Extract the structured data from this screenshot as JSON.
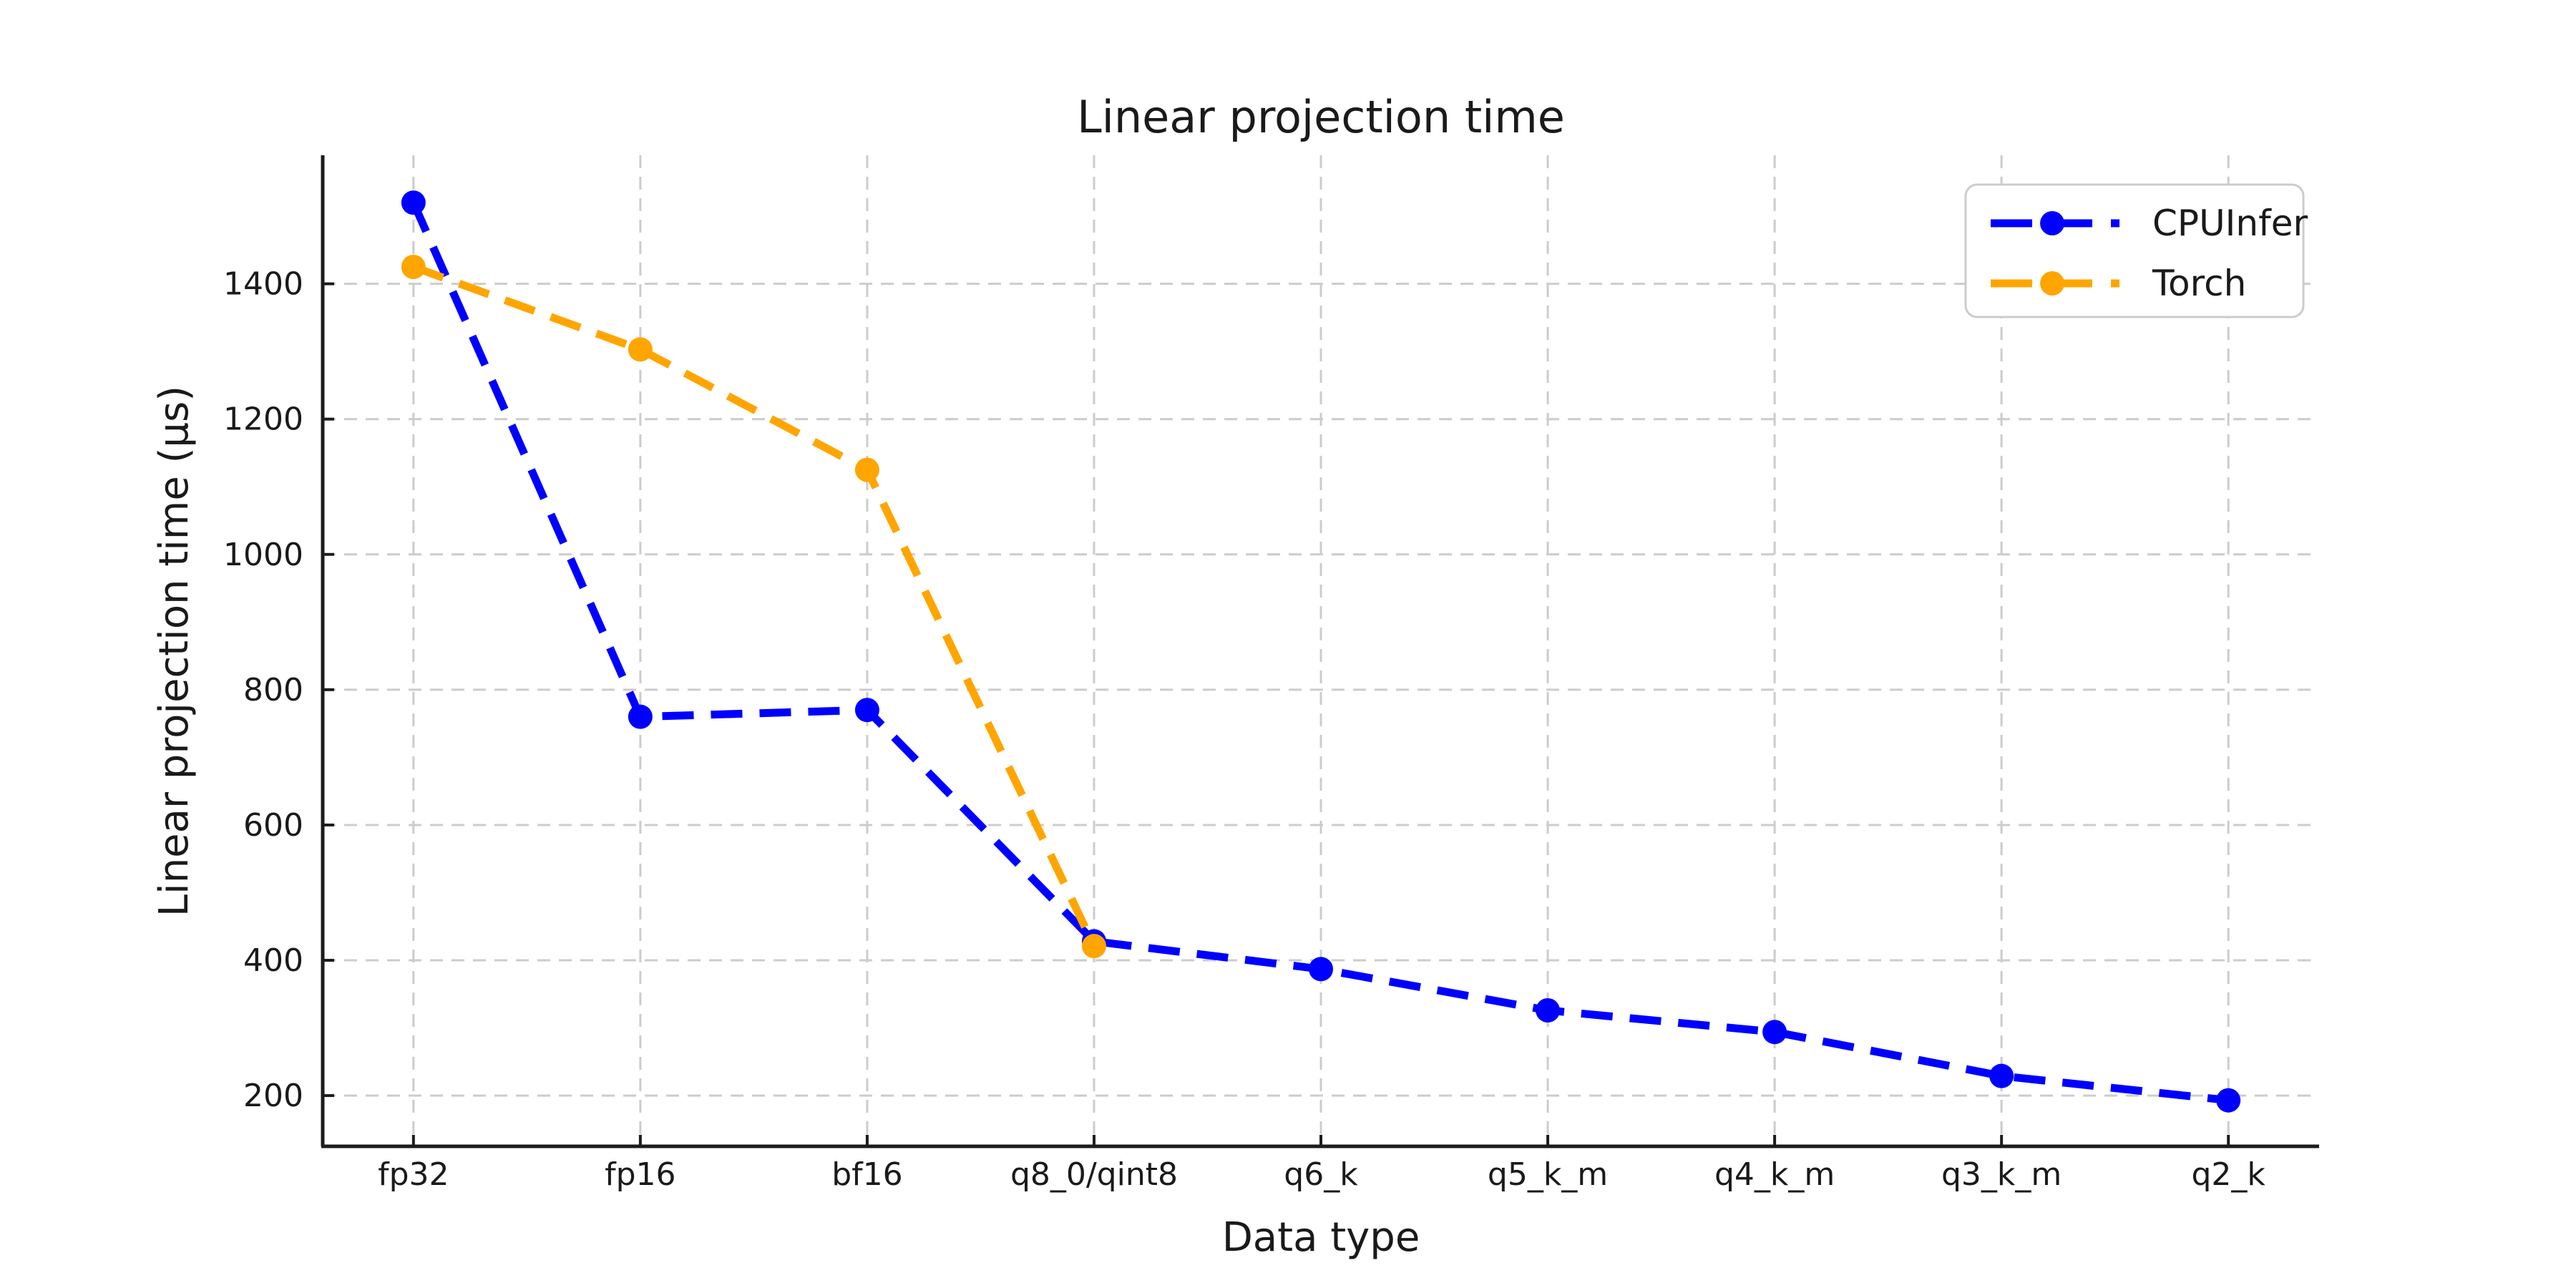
{
  "chart_data": {
    "type": "line",
    "title": "Linear projection time",
    "xlabel": "Data type",
    "ylabel": "Linear projection time (μs)",
    "categories": [
      "fp32",
      "fp16",
      "bf16",
      "q8_0/qint8",
      "q6_k",
      "q5_k_m",
      "q4_k_m",
      "q3_k_m",
      "q2_k"
    ],
    "series": [
      {
        "name": "CPUInfer",
        "color": "#0000ff",
        "line_style": "dashed",
        "marker": "circle",
        "values": [
          1520,
          760,
          770,
          428,
          387,
          326,
          294,
          229,
          193
        ]
      },
      {
        "name": "Torch",
        "color": "#ffa500",
        "line_style": "dashed",
        "marker": "circle",
        "values": [
          1425,
          1303,
          1125,
          421,
          null,
          null,
          null,
          null,
          null
        ]
      }
    ],
    "yticks": [
      200,
      400,
      600,
      800,
      1000,
      1200,
      1400
    ],
    "ylim": [
      125,
      1590
    ],
    "grid": "dashed",
    "grid_color": "#cccccc",
    "axis_color": "#1c1c1c",
    "legend_position": "upper right",
    "legend_border_color": "#cccccc",
    "background_color": "#ffffff"
  }
}
